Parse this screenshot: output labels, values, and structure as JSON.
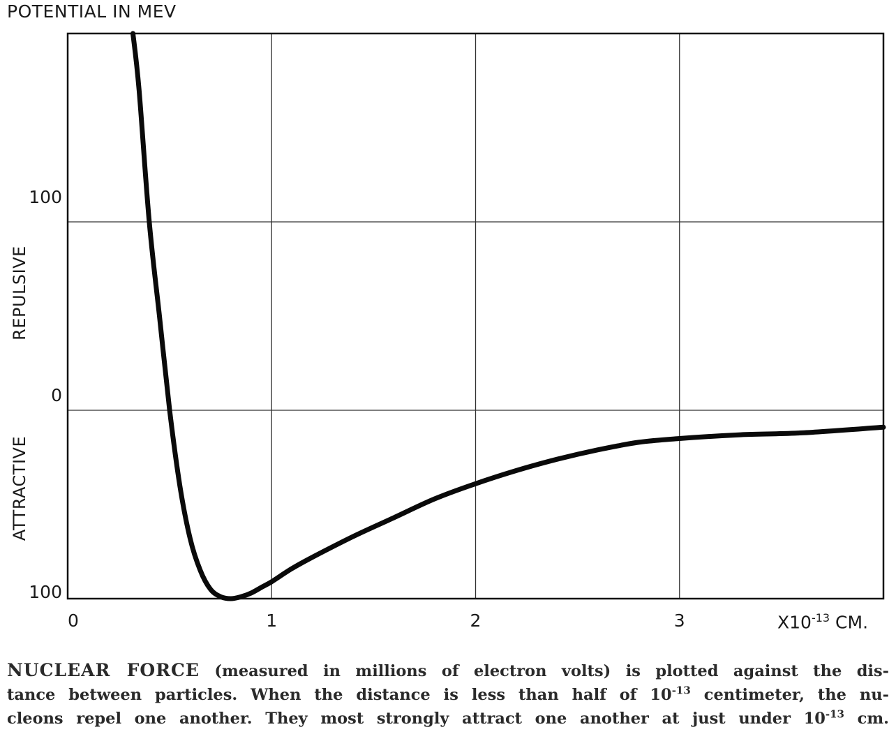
{
  "chart_data": {
    "type": "line",
    "title": "POTENTIAL IN MEV",
    "xlabel_prefix": "X10",
    "xlabel_exp": "-13",
    "xlabel_suffix": "CM.",
    "ylabel_repulsive": "REPULSIVE",
    "ylabel_attractive": "ATTRACTIVE",
    "x_ticks": [
      "0",
      "1",
      "2",
      "3"
    ],
    "y_tick_100_top": "100",
    "y_tick_0": "0",
    "y_tick_100_bottom": "100",
    "xlim": [
      0,
      4
    ],
    "ylim": [
      -100,
      200
    ],
    "grid": true,
    "series": [
      {
        "x": [
          0.32,
          0.35,
          0.4,
          0.45,
          0.5,
          0.55,
          0.6,
          0.65,
          0.7,
          0.75,
          0.8,
          0.85,
          0.9,
          0.95,
          1.0,
          1.1,
          1.2,
          1.4,
          1.6,
          1.8,
          2.0,
          2.2,
          2.4,
          2.6,
          2.8,
          3.0,
          3.3,
          3.6,
          4.0
        ],
        "y": [
          200,
          170,
          100,
          50,
          0,
          -40,
          -68,
          -85,
          -95,
          -99,
          -100,
          -99,
          -97,
          -94,
          -91,
          -84,
          -78,
          -67,
          -57,
          -47,
          -39,
          -32,
          -26,
          -21,
          -17,
          -15,
          -13,
          -12,
          -9
        ]
      }
    ]
  },
  "caption": {
    "lead": "NUCLEAR FORCE",
    "line1_rest": "(measured in millions of electron volts) is plotted against the dis-",
    "line2_a": "tance between particles. When the distance is less than half of 10",
    "line2_exp": "-13",
    "line2_b": "centimeter, the nu-",
    "line3_a": "cleons repel one another. They most strongly attract one another at just under 10",
    "line3_exp": "-13",
    "line3_b": "cm."
  }
}
